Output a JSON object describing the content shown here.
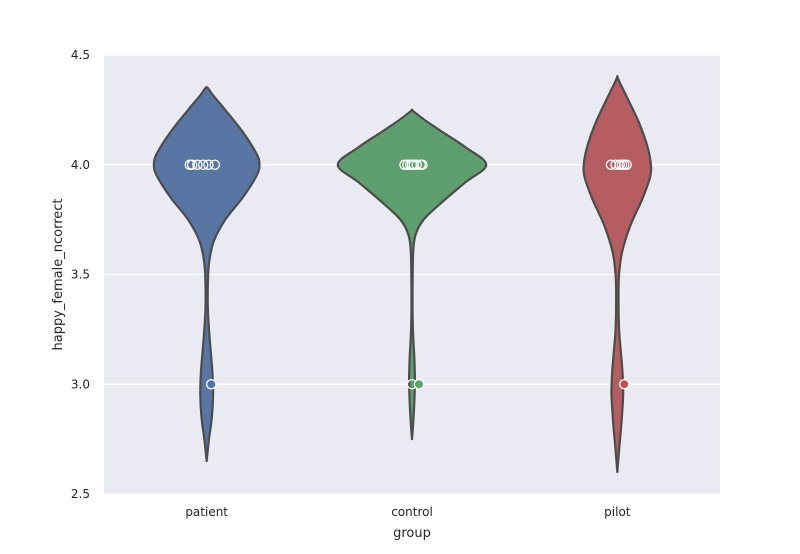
{
  "chart_data": {
    "type": "violin",
    "xlabel": "group",
    "ylabel": "happy_female_ncorrect",
    "ylim": [
      2.5,
      4.5
    ],
    "yticks": [
      "2.5",
      "3.0",
      "3.5",
      "4.0",
      "4.5"
    ],
    "grid": true,
    "style": "seaborn-darkgrid",
    "colors": {
      "background": "#EAEAF2",
      "grid": "#FFFFFF",
      "outline": "#4C4C4C",
      "patient": "#5975A4",
      "control": "#5F9E6E",
      "pilot": "#B55D60",
      "patient_point": "#4C72B0",
      "control_point": "#55A868",
      "pilot_point": "#C44E52"
    },
    "categories": [
      "patient",
      "control",
      "pilot"
    ],
    "violins": [
      {
        "category": "patient",
        "min": 2.65,
        "max": 4.35,
        "profile": [
          [
            2.65,
            0.0
          ],
          [
            2.75,
            0.04
          ],
          [
            2.85,
            0.09
          ],
          [
            2.95,
            0.11
          ],
          [
            3.05,
            0.1
          ],
          [
            3.15,
            0.07
          ],
          [
            3.25,
            0.04
          ],
          [
            3.35,
            0.02
          ],
          [
            3.45,
            0.02
          ],
          [
            3.55,
            0.04
          ],
          [
            3.65,
            0.12
          ],
          [
            3.75,
            0.32
          ],
          [
            3.85,
            0.62
          ],
          [
            3.95,
            0.86
          ],
          [
            4.0,
            0.91
          ],
          [
            4.05,
            0.86
          ],
          [
            4.15,
            0.62
          ],
          [
            4.25,
            0.32
          ],
          [
            4.32,
            0.1
          ],
          [
            4.35,
            0.02
          ]
        ],
        "points": [
          {
            "y": 4.0,
            "dx": -0.29,
            "filled": false
          },
          {
            "y": 4.0,
            "dx": -0.25,
            "filled": false
          },
          {
            "y": 4.0,
            "dx": -0.16,
            "filled": false
          },
          {
            "y": 4.0,
            "dx": -0.06,
            "filled": false
          },
          {
            "y": 4.0,
            "dx": 0.03,
            "filled": false
          },
          {
            "y": 4.0,
            "dx": 0.14,
            "filled": false
          },
          {
            "y": 3.0,
            "dx": 0.08,
            "filled": true
          }
        ]
      },
      {
        "category": "control",
        "min": 2.75,
        "max": 4.25,
        "profile": [
          [
            2.75,
            0.0
          ],
          [
            2.82,
            0.02
          ],
          [
            2.92,
            0.04
          ],
          [
            3.02,
            0.05
          ],
          [
            3.12,
            0.04
          ],
          [
            3.22,
            0.02
          ],
          [
            3.32,
            0.01
          ],
          [
            3.45,
            0.01
          ],
          [
            3.6,
            0.02
          ],
          [
            3.68,
            0.06
          ],
          [
            3.75,
            0.2
          ],
          [
            3.83,
            0.52
          ],
          [
            3.92,
            0.92
          ],
          [
            4.0,
            1.28
          ],
          [
            4.08,
            0.92
          ],
          [
            4.15,
            0.52
          ],
          [
            4.2,
            0.24
          ],
          [
            4.24,
            0.04
          ],
          [
            4.25,
            0.0
          ]
        ],
        "points": [
          {
            "y": 4.0,
            "dx": -0.13,
            "filled": false
          },
          {
            "y": 4.0,
            "dx": -0.08,
            "filled": false
          },
          {
            "y": 4.0,
            "dx": -0.03,
            "filled": false
          },
          {
            "y": 4.0,
            "dx": 0.0,
            "filled": true
          },
          {
            "y": 4.0,
            "dx": 0.03,
            "filled": false
          },
          {
            "y": 4.0,
            "dx": 0.08,
            "filled": false
          },
          {
            "y": 4.0,
            "dx": 0.15,
            "filled": false
          },
          {
            "y": 4.0,
            "dx": 0.18,
            "filled": false
          },
          {
            "y": 3.0,
            "dx": 0.0,
            "filled": false
          },
          {
            "y": 3.0,
            "dx": 0.12,
            "filled": true
          }
        ]
      },
      {
        "category": "pilot",
        "min": 2.6,
        "max": 4.4,
        "profile": [
          [
            2.6,
            0.0
          ],
          [
            2.7,
            0.03
          ],
          [
            2.82,
            0.07
          ],
          [
            2.95,
            0.1
          ],
          [
            3.05,
            0.09
          ],
          [
            3.15,
            0.06
          ],
          [
            3.25,
            0.03
          ],
          [
            3.4,
            0.02
          ],
          [
            3.5,
            0.03
          ],
          [
            3.6,
            0.08
          ],
          [
            3.72,
            0.22
          ],
          [
            3.85,
            0.44
          ],
          [
            3.95,
            0.57
          ],
          [
            4.02,
            0.57
          ],
          [
            4.1,
            0.5
          ],
          [
            4.2,
            0.36
          ],
          [
            4.3,
            0.18
          ],
          [
            4.37,
            0.05
          ],
          [
            4.4,
            0.0
          ]
        ],
        "points": [
          {
            "y": 4.0,
            "dx": -0.11,
            "filled": false
          },
          {
            "y": 4.0,
            "dx": -0.03,
            "filled": false
          },
          {
            "y": 4.0,
            "dx": 0.04,
            "filled": false
          },
          {
            "y": 4.0,
            "dx": 0.08,
            "filled": false
          },
          {
            "y": 4.0,
            "dx": 0.12,
            "filled": false
          },
          {
            "y": 4.0,
            "dx": 0.16,
            "filled": false
          },
          {
            "y": 3.0,
            "dx": 0.12,
            "filled": true
          }
        ]
      }
    ]
  }
}
